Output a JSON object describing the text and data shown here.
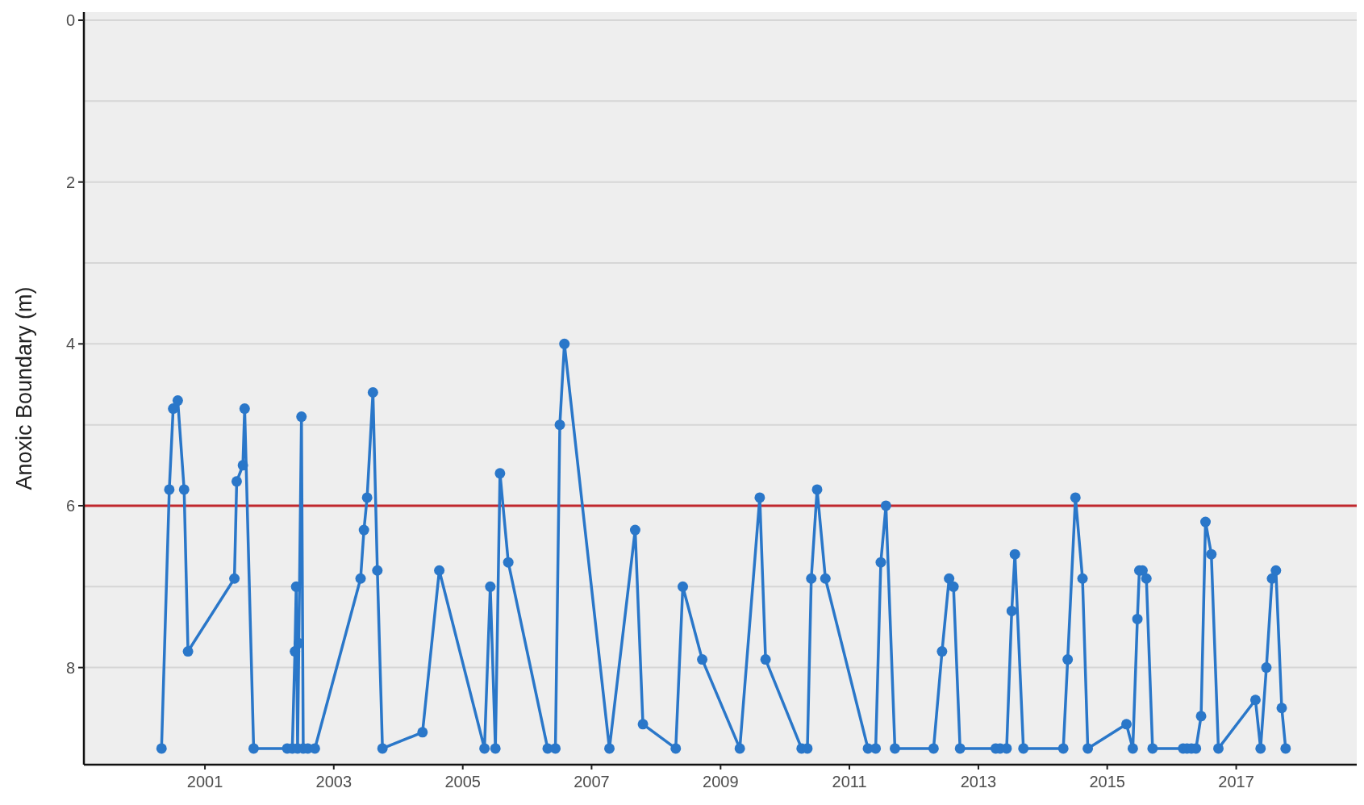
{
  "chart_data": {
    "type": "line",
    "ylabel": "Anoxic Boundary (m)",
    "x": [
      "2000-04-30",
      "2000-06-13",
      "2000-07-05",
      "2000-07-31",
      "2000-09-05",
      "2000-09-27",
      "2001-06-17",
      "2001-06-30",
      "2001-08-04",
      "2001-08-14",
      "2001-10-04",
      "2002-04-12",
      "2002-05-11",
      "2002-05-26",
      "2002-06-02",
      "2002-06-10",
      "2002-06-17",
      "2002-07-02",
      "2002-07-12",
      "2002-08-07",
      "2002-09-16",
      "2003-06-02",
      "2003-06-21",
      "2003-07-09",
      "2003-08-11",
      "2003-09-05",
      "2003-10-04",
      "2004-05-18",
      "2004-08-21",
      "2005-05-04",
      "2005-06-06",
      "2005-07-05",
      "2005-07-31",
      "2005-09-16",
      "2006-04-27",
      "2006-06-10",
      "2006-07-05",
      "2006-07-31",
      "2007-04-12",
      "2007-09-05",
      "2007-10-19",
      "2008-04-22",
      "2008-06-01",
      "2008-09-19",
      "2009-04-20",
      "2009-08-11",
      "2009-09-13",
      "2010-04-05",
      "2010-05-08",
      "2010-05-30",
      "2010-07-02",
      "2010-08-18",
      "2011-04-16",
      "2011-05-30",
      "2011-06-28",
      "2011-07-27",
      "2011-09-16",
      "2012-04-22",
      "2012-06-09",
      "2012-07-19",
      "2012-08-13",
      "2012-09-19",
      "2013-04-09",
      "2013-05-04",
      "2013-06-10",
      "2013-07-09",
      "2013-07-27",
      "2013-09-13",
      "2014-04-27",
      "2014-05-22",
      "2014-07-05",
      "2014-08-14",
      "2014-09-13",
      "2015-04-20",
      "2015-05-26",
      "2015-06-21",
      "2015-07-02",
      "2015-07-20",
      "2015-08-11",
      "2015-09-15",
      "2016-03-06",
      "2016-03-28",
      "2016-04-22",
      "2016-05-18",
      "2016-06-16",
      "2016-07-11",
      "2016-08-13",
      "2016-09-22",
      "2017-04-20",
      "2017-05-19",
      "2017-06-21",
      "2017-07-23",
      "2017-08-14",
      "2017-09-16",
      "2017-10-08"
    ],
    "series": [
      {
        "color": "#2a77c9",
        "values": [
          9,
          5.8,
          4.8,
          4.7,
          5.8,
          7.8,
          6.9,
          5.7,
          5.5,
          4.8,
          9,
          9,
          9,
          7.8,
          7.0,
          9,
          7.7,
          4.9,
          9,
          9,
          9,
          6.9,
          6.3,
          5.9,
          4.6,
          6.8,
          9,
          8.8,
          6.8,
          9,
          7.0,
          9,
          5.6,
          6.7,
          9,
          9,
          5.0,
          4.0,
          9,
          6.3,
          8.7,
          9,
          7.0,
          7.9,
          9,
          5.9,
          7.9,
          9,
          9,
          6.9,
          5.8,
          6.9,
          9,
          9,
          6.7,
          6.0,
          9,
          9,
          7.8,
          6.9,
          7.0,
          9,
          9,
          9,
          9,
          7.3,
          6.6,
          9,
          9,
          7.9,
          5.9,
          6.9,
          9,
          8.7,
          9,
          7.4,
          6.8,
          6.8,
          6.9,
          9,
          9,
          9,
          9,
          9,
          8.6,
          6.2,
          6.6,
          9,
          8.4,
          9,
          8.0,
          6.9,
          6.8,
          8.5,
          9
        ]
      }
    ],
    "xlim": [
      "1999-02-15",
      "2018-11-15"
    ],
    "xticks": [
      "2001",
      "2003",
      "2005",
      "2007",
      "2009",
      "2011",
      "2013",
      "2015",
      "2017"
    ],
    "ylim": [
      9.2,
      -0.1
    ],
    "yticks": [
      0,
      {
        "value": 1,
        "label": null
      },
      2,
      {
        "value": 3,
        "label": null
      },
      4,
      {
        "value": 5,
        "label": null
      },
      6,
      {
        "value": 7,
        "label": null
      },
      8
    ],
    "grid": "y",
    "marker": "circle",
    "line_style": "solid",
    "ref_lines": [
      {
        "axis": "y",
        "value": 6,
        "color": "#c0272d"
      }
    ]
  }
}
